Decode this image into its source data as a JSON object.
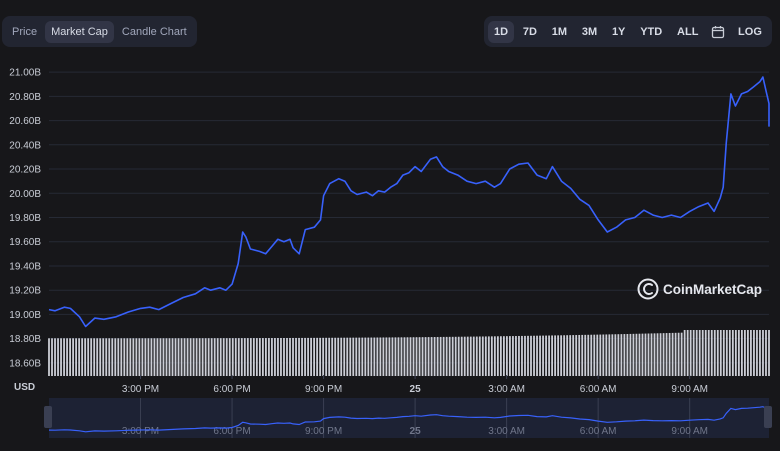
{
  "tabs": [
    {
      "label": "Price",
      "active": false
    },
    {
      "label": "Market Cap",
      "active": true
    },
    {
      "label": "Candle Chart",
      "active": false
    }
  ],
  "ranges": [
    {
      "label": "1D",
      "active": true
    },
    {
      "label": "7D",
      "active": false
    },
    {
      "label": "1M",
      "active": false
    },
    {
      "label": "3M",
      "active": false
    },
    {
      "label": "1Y",
      "active": false
    },
    {
      "label": "YTD",
      "active": false
    },
    {
      "label": "ALL",
      "active": false
    }
  ],
  "calendar_icon": "calendar-icon",
  "log_label": "LOG",
  "watermark": "CoinMarketCap",
  "currency": "USD",
  "colors": {
    "line": "#3861fb",
    "volume": "#d6d8e0",
    "background": "#17171a"
  },
  "chart_data": {
    "type": "line",
    "ylim": [
      18.5,
      21.1
    ],
    "y_ticks": [
      "21.00B",
      "20.80B",
      "20.60B",
      "20.40B",
      "20.20B",
      "20.00B",
      "19.80B",
      "19.60B",
      "19.40B",
      "19.20B",
      "19.00B",
      "18.80B",
      "18.60B"
    ],
    "y_tick_values": [
      21.0,
      20.8,
      20.6,
      20.4,
      20.2,
      20.0,
      19.8,
      19.6,
      19.4,
      19.2,
      19.0,
      18.8,
      18.6
    ],
    "x_ticks": [
      "3:00 PM",
      "6:00 PM",
      "9:00 PM",
      "25",
      "3:00 AM",
      "6:00 AM",
      "9:00 AM"
    ],
    "x_tick_hours": [
      3,
      6,
      9,
      12,
      15,
      18,
      21
    ],
    "x_range_hours": [
      0,
      23.6
    ],
    "series": [
      {
        "values": [
          [
            0.0,
            19.04
          ],
          [
            0.2,
            19.03
          ],
          [
            0.5,
            19.06
          ],
          [
            0.7,
            19.05
          ],
          [
            1.0,
            18.98
          ],
          [
            1.2,
            18.9
          ],
          [
            1.5,
            18.97
          ],
          [
            1.8,
            18.96
          ],
          [
            2.2,
            18.98
          ],
          [
            2.6,
            19.02
          ],
          [
            3.0,
            19.05
          ],
          [
            3.3,
            19.06
          ],
          [
            3.6,
            19.04
          ],
          [
            4.0,
            19.09
          ],
          [
            4.4,
            19.14
          ],
          [
            4.8,
            19.17
          ],
          [
            5.1,
            19.22
          ],
          [
            5.3,
            19.2
          ],
          [
            5.6,
            19.22
          ],
          [
            5.8,
            19.2
          ],
          [
            6.0,
            19.25
          ],
          [
            6.2,
            19.42
          ],
          [
            6.35,
            19.68
          ],
          [
            6.45,
            19.64
          ],
          [
            6.6,
            19.54
          ],
          [
            6.9,
            19.52
          ],
          [
            7.1,
            19.5
          ],
          [
            7.3,
            19.56
          ],
          [
            7.5,
            19.62
          ],
          [
            7.7,
            19.6
          ],
          [
            7.9,
            19.62
          ],
          [
            8.0,
            19.55
          ],
          [
            8.2,
            19.5
          ],
          [
            8.4,
            19.7
          ],
          [
            8.7,
            19.72
          ],
          [
            8.9,
            19.78
          ],
          [
            9.0,
            19.98
          ],
          [
            9.2,
            20.08
          ],
          [
            9.5,
            20.12
          ],
          [
            9.7,
            20.1
          ],
          [
            9.9,
            20.02
          ],
          [
            10.1,
            19.99
          ],
          [
            10.4,
            20.01
          ],
          [
            10.6,
            19.98
          ],
          [
            10.8,
            20.02
          ],
          [
            11.0,
            20.01
          ],
          [
            11.2,
            20.05
          ],
          [
            11.4,
            20.08
          ],
          [
            11.6,
            20.15
          ],
          [
            11.8,
            20.17
          ],
          [
            12.0,
            20.22
          ],
          [
            12.2,
            20.18
          ],
          [
            12.5,
            20.28
          ],
          [
            12.7,
            20.3
          ],
          [
            12.9,
            20.22
          ],
          [
            13.1,
            20.18
          ],
          [
            13.4,
            20.15
          ],
          [
            13.7,
            20.1
          ],
          [
            14.0,
            20.08
          ],
          [
            14.3,
            20.1
          ],
          [
            14.6,
            20.05
          ],
          [
            14.8,
            20.08
          ],
          [
            15.1,
            20.2
          ],
          [
            15.4,
            20.24
          ],
          [
            15.7,
            20.25
          ],
          [
            16.0,
            20.15
          ],
          [
            16.3,
            20.12
          ],
          [
            16.5,
            20.22
          ],
          [
            16.8,
            20.1
          ],
          [
            17.1,
            20.04
          ],
          [
            17.4,
            19.95
          ],
          [
            17.7,
            19.9
          ],
          [
            18.0,
            19.78
          ],
          [
            18.3,
            19.68
          ],
          [
            18.6,
            19.72
          ],
          [
            18.9,
            19.78
          ],
          [
            19.2,
            19.8
          ],
          [
            19.5,
            19.86
          ],
          [
            19.8,
            19.82
          ],
          [
            20.1,
            19.8
          ],
          [
            20.4,
            19.82
          ],
          [
            20.7,
            19.8
          ],
          [
            21.0,
            19.85
          ],
          [
            21.3,
            19.89
          ],
          [
            21.6,
            19.92
          ],
          [
            21.8,
            19.85
          ],
          [
            22.0,
            19.96
          ],
          [
            22.1,
            20.05
          ],
          [
            22.2,
            20.42
          ],
          [
            22.35,
            20.82
          ],
          [
            22.5,
            20.72
          ],
          [
            22.7,
            20.82
          ],
          [
            22.9,
            20.84
          ],
          [
            23.1,
            20.88
          ],
          [
            23.3,
            20.92
          ],
          [
            23.4,
            20.96
          ],
          [
            23.5,
            20.85
          ],
          [
            23.6,
            20.74
          ],
          [
            23.75,
            20.68
          ],
          [
            23.9,
            20.65
          ],
          [
            24.0,
            20.62
          ],
          [
            24.2,
            20.55
          ]
        ]
      }
    ],
    "volume": {
      "start": 0.82,
      "end": 1.0
    }
  }
}
